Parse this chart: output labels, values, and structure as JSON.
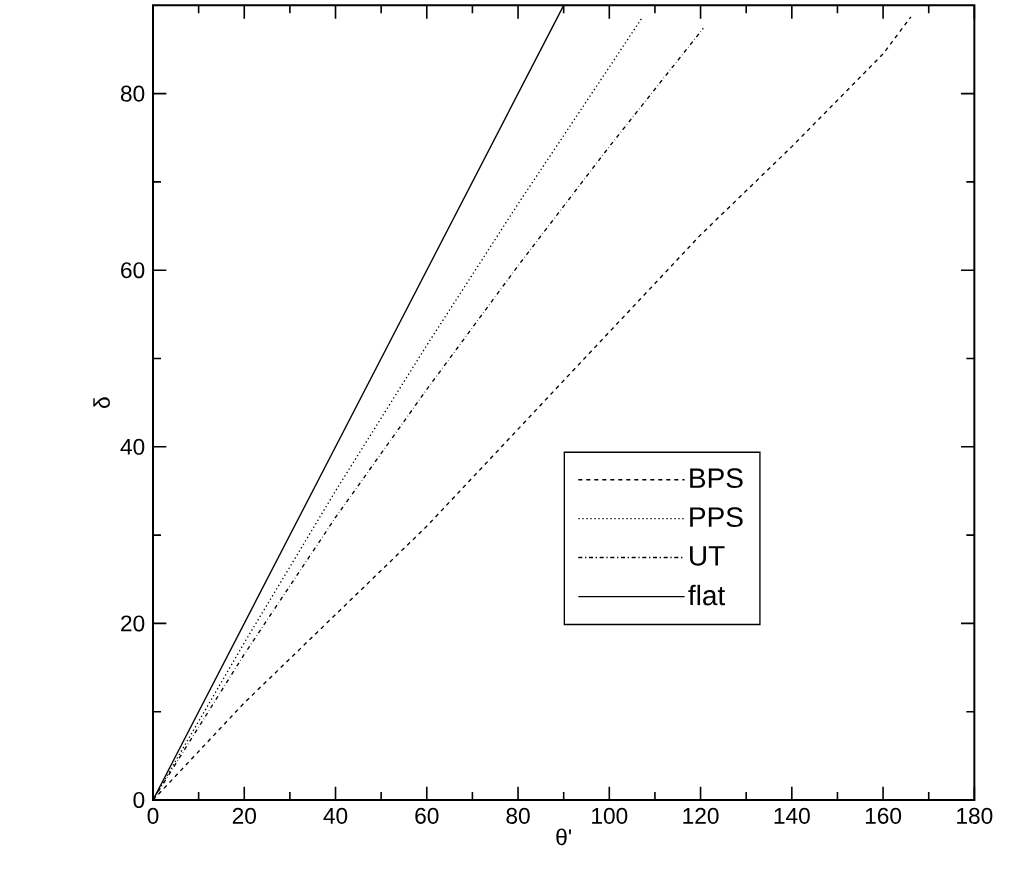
{
  "chart_data": {
    "type": "line",
    "xlabel": "θ'",
    "ylabel": "δ",
    "xlim": [
      0,
      180
    ],
    "ylim": [
      0,
      90
    ],
    "xticks": [
      0,
      20,
      40,
      60,
      80,
      100,
      120,
      140,
      160,
      180
    ],
    "yticks": [
      0,
      20,
      40,
      60,
      80
    ],
    "legend": "right",
    "grid": false,
    "marker": "none",
    "series": [
      {
        "name": "BPS",
        "color": "#000000",
        "line_style": "dashed",
        "x": [
          0,
          20,
          40,
          60,
          80,
          100,
          120,
          140,
          160,
          166.1
        ],
        "values": [
          0,
          11,
          21,
          31,
          42,
          53,
          64,
          74,
          84.5,
          88.7
        ]
      },
      {
        "name": "PPS",
        "color": "#000000",
        "line_style": "dotted",
        "x": [
          0,
          20,
          40,
          60,
          80,
          100,
          107.2
        ],
        "values": [
          0,
          17.8,
          35,
          51.5,
          67.5,
          83,
          88.6
        ]
      },
      {
        "name": "UT",
        "color": "#000000",
        "line_style": "dashdot",
        "x": [
          0,
          20,
          40,
          60,
          80,
          100,
          120.6
        ],
        "values": [
          0,
          16.5,
          32,
          46.5,
          60.5,
          74,
          87.4
        ]
      },
      {
        "name": "flat",
        "color": "#000000",
        "line_style": "solid",
        "x": [
          0,
          90
        ],
        "values": [
          0,
          90
        ]
      }
    ]
  }
}
